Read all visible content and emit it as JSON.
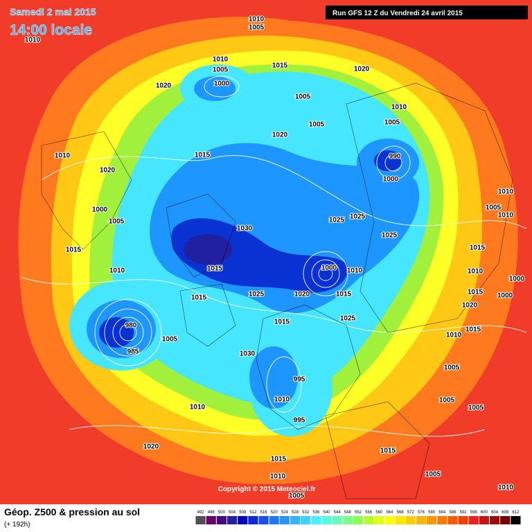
{
  "header": {
    "date": "Samedi 2 mai 2015",
    "time": "14:00 locale",
    "run": "Run GFS 12 Z du Vendredi 24 avril 2015"
  },
  "footer": {
    "copyright": "Copyright © 2015 Meteociel.fr",
    "field": "Géop. Z500 & pression au sol",
    "lead": "(+ 192h)"
  },
  "isobar_labels": [
    "1010",
    "1005",
    "1010",
    "1010",
    "1005",
    "1015",
    "1020",
    "1000",
    "1020",
    "1005",
    "1010",
    "1005",
    "1005",
    "1020",
    "990",
    "1000",
    "1010",
    "1015",
    "1020",
    "1010",
    "1005",
    "1000",
    "1005",
    "1030",
    "1025",
    "1025",
    "1010",
    "1025",
    "1015",
    "1015",
    "1015",
    "1010",
    "1000",
    "1010",
    "1010",
    "1000",
    "1015",
    "1025",
    "1020",
    "1015",
    "1015",
    "1020",
    "1000",
    "980",
    "1025",
    "1015",
    "1010",
    "1015",
    "985",
    "1005",
    "1030",
    "1005",
    "995",
    "1010",
    "1005",
    "1005",
    "1010",
    "995",
    "1020",
    "1015",
    "1015",
    "1010",
    "1005",
    "1005",
    "1010"
  ],
  "legend": {
    "labels": [
      "492",
      "496",
      "500",
      "504",
      "508",
      "512",
      "516",
      "520",
      "524",
      "528",
      "532",
      "536",
      "540",
      "544",
      "548",
      "552",
      "556",
      "560",
      "564",
      "568",
      "572",
      "576",
      "580",
      "584",
      "588",
      "592",
      "596",
      "600",
      "604",
      "608",
      "612"
    ],
    "colors": [
      "#505050",
      "#6a006a",
      "#4b0082",
      "#2020a0",
      "#0000c8",
      "#0a28dc",
      "#1450f0",
      "#1e78ff",
      "#2896ff",
      "#32b4ff",
      "#3cd2ff",
      "#46f0ff",
      "#50ffdc",
      "#64ffb4",
      "#78ff8c",
      "#8cff50",
      "#b4ff28",
      "#dcff14",
      "#ffff00",
      "#ffe600",
      "#ffcc00",
      "#ffb400",
      "#ff9600",
      "#ff7800",
      "#ff5a00",
      "#ff3c00",
      "#f01e1e",
      "#c81414",
      "#a00a0a",
      "#780000",
      "#000000"
    ]
  }
}
